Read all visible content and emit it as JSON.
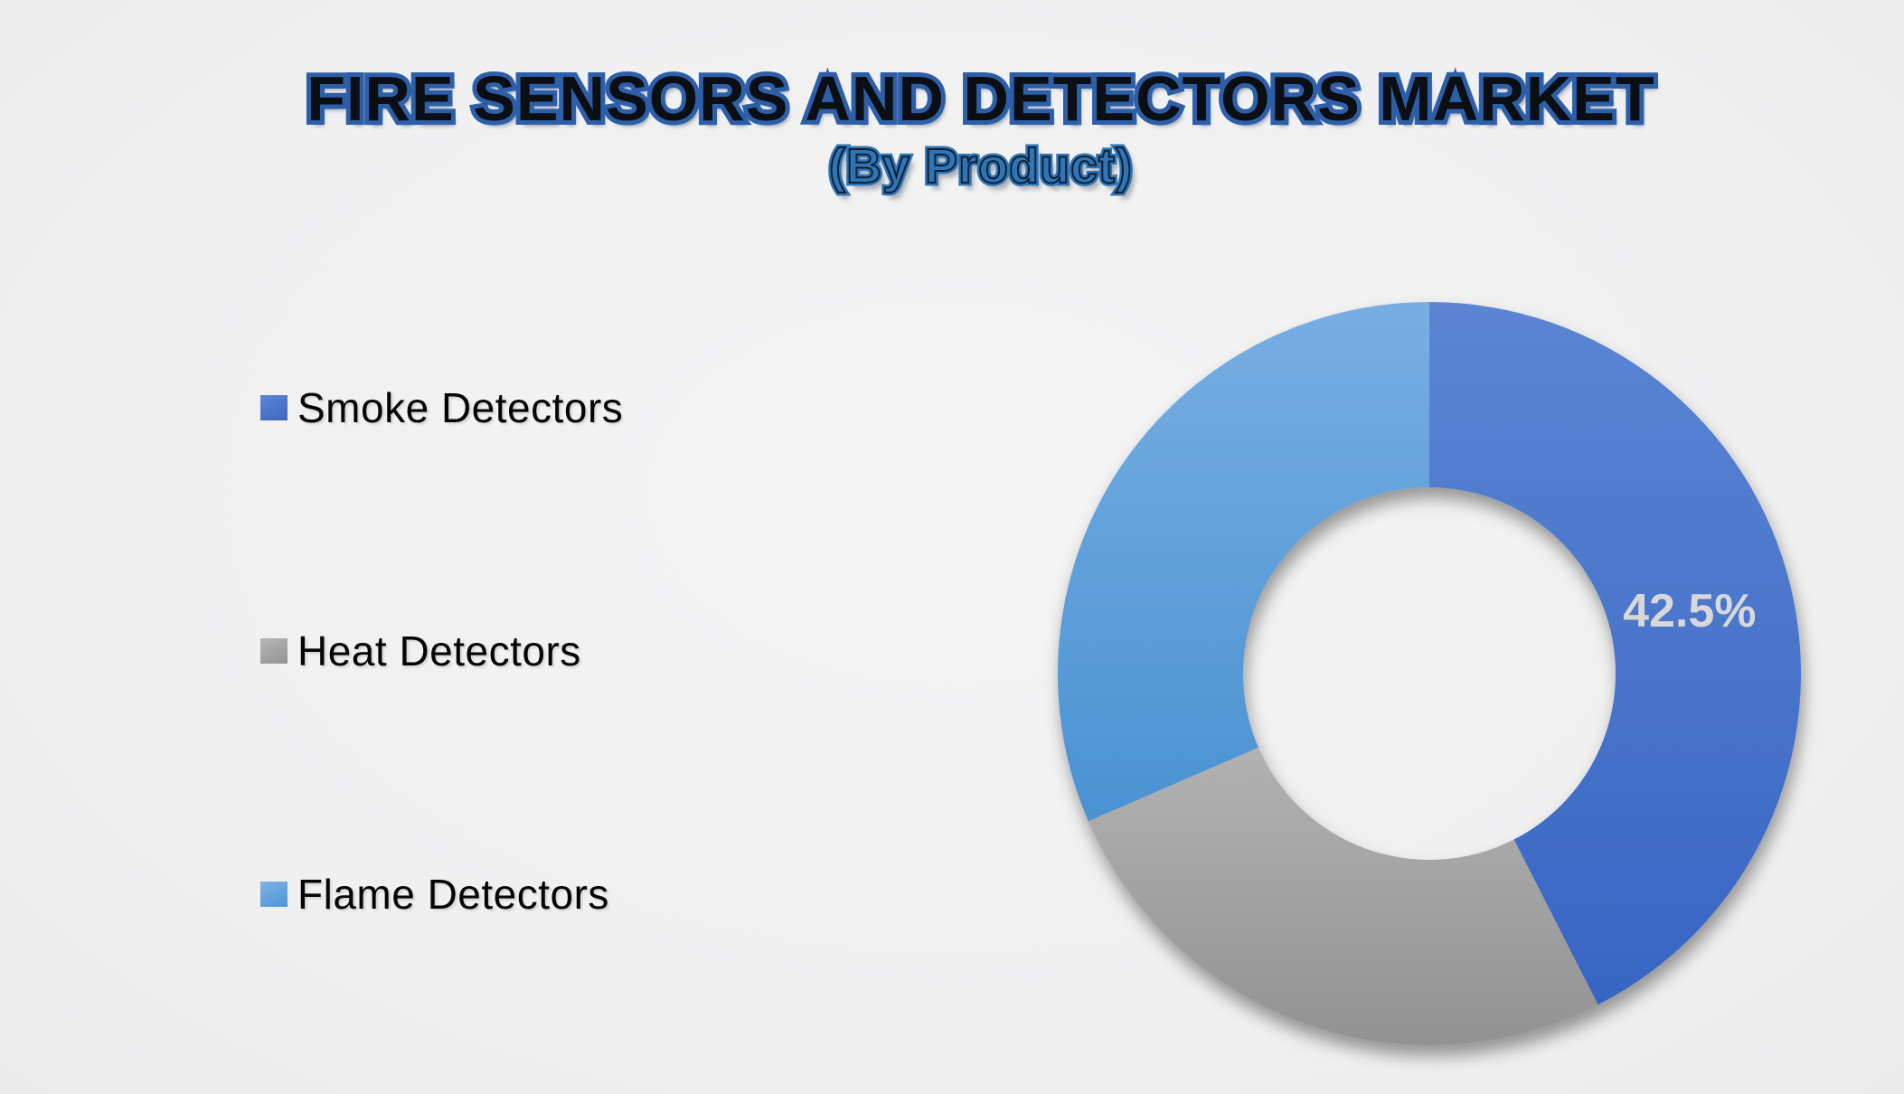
{
  "page": {
    "background": "#f0f0f1"
  },
  "header": {
    "title": "FIRE SENSORS AND DETECTORS MARKET",
    "subtitle": "(By Product)",
    "title_fill": "#0b0e13",
    "title_outline": "#2d5fa9",
    "subtitle_color": "#2e75b6"
  },
  "chart_data": {
    "type": "pie",
    "variant": "donut",
    "title": "FIRE SENSORS AND DETECTORS MARKET",
    "subtitle": "(By Product)",
    "hole_ratio": 0.5,
    "start_angle_deg": 0,
    "direction": "clockwise",
    "legend_position": "left",
    "data_label_color": "#d8d8d8",
    "series": [
      {
        "name": "Smoke Detectors",
        "value": 42.5,
        "label": "42.5%",
        "color_top": "#5b85d3",
        "color_bottom": "#3765c3"
      },
      {
        "name": "Heat Detectors",
        "value": 26.0,
        "label": "",
        "color_top": "#b2b2b2",
        "color_bottom": "#929292"
      },
      {
        "name": "Flame Detectors",
        "value": 31.5,
        "label": "",
        "color_top": "#78aee2",
        "color_bottom": "#4a92d3"
      }
    ]
  }
}
